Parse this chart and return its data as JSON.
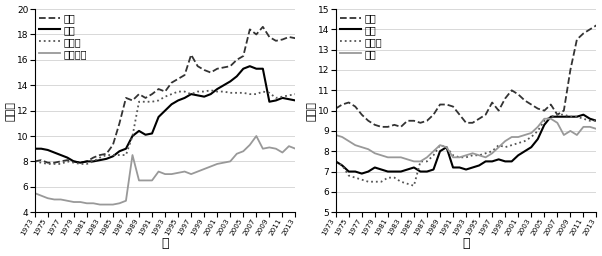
{
  "years": [
    1973,
    1974,
    1975,
    1976,
    1977,
    1978,
    1979,
    1980,
    1981,
    1982,
    1983,
    1984,
    1985,
    1986,
    1987,
    1988,
    1989,
    1990,
    1991,
    1992,
    1993,
    1994,
    1995,
    1996,
    1997,
    1998,
    1999,
    2000,
    2001,
    2002,
    2003,
    2004,
    2005,
    2006,
    2007,
    2008,
    2009,
    2010,
    2011,
    2012,
    2013
  ],
  "left": {
    "ylabel": "百分比",
    "xlabel": "年",
    "ylim": [
      4,
      20
    ],
    "yticks": [
      4,
      6,
      8,
      10,
      12,
      14,
      16,
      18,
      20
    ],
    "legend": [
      "美国",
      "英国",
      "加拿大",
      "澳大利亚"
    ],
    "line_styles": [
      "--",
      "-",
      ":",
      "-"
    ],
    "line_colors": [
      "#333333",
      "#000000",
      "#555555",
      "#999999"
    ],
    "linewidths": [
      1.3,
      1.5,
      1.3,
      1.3
    ],
    "USA": [
      8.0,
      8.1,
      7.9,
      7.9,
      8.0,
      8.1,
      8.0,
      7.9,
      8.0,
      8.3,
      8.5,
      8.6,
      9.3,
      11.0,
      13.0,
      12.8,
      13.3,
      13.0,
      13.3,
      13.7,
      13.5,
      14.2,
      14.5,
      14.8,
      16.4,
      15.5,
      15.2,
      15.0,
      15.3,
      15.4,
      15.5,
      16.0,
      16.3,
      18.4,
      18.0,
      18.6,
      17.8,
      17.5,
      17.6,
      17.8,
      17.7
    ],
    "UK": [
      9.0,
      9.0,
      8.9,
      8.7,
      8.5,
      8.3,
      8.0,
      7.9,
      8.0,
      8.0,
      8.1,
      8.2,
      8.4,
      8.8,
      9.0,
      10.0,
      10.4,
      10.1,
      10.2,
      11.5,
      12.0,
      12.5,
      12.8,
      13.0,
      13.3,
      13.2,
      13.1,
      13.3,
      13.7,
      14.0,
      14.3,
      14.7,
      15.3,
      15.5,
      15.3,
      15.3,
      12.7,
      12.8,
      13.0,
      12.9,
      12.8
    ],
    "Canada": [
      8.0,
      7.9,
      7.8,
      7.8,
      7.8,
      8.0,
      7.9,
      7.8,
      7.8,
      8.0,
      8.3,
      8.5,
      8.5,
      8.5,
      8.5,
      10.0,
      12.7,
      12.7,
      12.7,
      12.8,
      13.1,
      13.3,
      13.5,
      13.5,
      13.3,
      13.5,
      13.5,
      13.6,
      13.5,
      13.5,
      13.4,
      13.4,
      13.4,
      13.3,
      13.3,
      13.5,
      13.4,
      13.0,
      13.1,
      13.2,
      13.3
    ],
    "Australia": [
      5.5,
      5.3,
      5.1,
      5.0,
      5.0,
      4.9,
      4.8,
      4.8,
      4.7,
      4.7,
      4.6,
      4.6,
      4.6,
      4.7,
      4.9,
      8.5,
      6.5,
      6.5,
      6.5,
      7.2,
      7.0,
      7.0,
      7.1,
      7.2,
      7.0,
      7.2,
      7.4,
      7.6,
      7.8,
      7.9,
      8.0,
      8.6,
      8.8,
      9.3,
      10.0,
      9.0,
      9.1,
      9.0,
      8.7,
      9.2,
      9.0
    ]
  },
  "right": {
    "ylabel": "百分比",
    "xlabel": "年",
    "ylim": [
      5,
      15
    ],
    "yticks": [
      5,
      6,
      7,
      8,
      9,
      10,
      11,
      12,
      13,
      14,
      15
    ],
    "legend": [
      "德国",
      "日本",
      "意大利",
      "法国"
    ],
    "line_styles": [
      "--",
      "-",
      ":",
      "-"
    ],
    "line_colors": [
      "#333333",
      "#000000",
      "#555555",
      "#999999"
    ],
    "linewidths": [
      1.3,
      1.5,
      1.3,
      1.3
    ],
    "Germany": [
      10.1,
      10.3,
      10.4,
      10.2,
      9.8,
      9.5,
      9.3,
      9.2,
      9.2,
      9.3,
      9.2,
      9.5,
      9.5,
      9.4,
      9.5,
      9.8,
      10.3,
      10.3,
      10.2,
      9.8,
      9.4,
      9.4,
      9.6,
      9.8,
      10.4,
      10.0,
      10.6,
      11.0,
      10.8,
      10.5,
      10.3,
      10.1,
      10.0,
      10.3,
      9.8,
      10.0,
      12.0,
      13.5,
      13.8,
      14.0,
      14.2
    ],
    "Japan": [
      7.5,
      7.3,
      7.0,
      7.0,
      6.9,
      7.0,
      7.2,
      7.1,
      7.0,
      7.0,
      7.0,
      7.1,
      7.2,
      7.0,
      7.0,
      7.1,
      8.0,
      8.2,
      7.2,
      7.2,
      7.1,
      7.2,
      7.3,
      7.5,
      7.5,
      7.6,
      7.5,
      7.5,
      7.8,
      8.0,
      8.2,
      8.6,
      9.3,
      9.7,
      9.7,
      9.7,
      9.7,
      9.7,
      9.8,
      9.6,
      9.5
    ],
    "Italy": [
      7.5,
      7.3,
      6.8,
      6.7,
      6.6,
      6.5,
      6.5,
      6.5,
      6.7,
      6.7,
      6.5,
      6.4,
      6.3,
      7.5,
      7.5,
      7.8,
      8.3,
      8.2,
      7.8,
      7.7,
      7.7,
      7.8,
      7.8,
      7.9,
      8.0,
      8.3,
      8.2,
      8.3,
      8.4,
      8.5,
      8.7,
      9.0,
      9.5,
      9.7,
      9.8,
      9.8,
      9.7,
      9.7,
      9.6,
      9.5,
      9.5
    ],
    "France": [
      8.8,
      8.7,
      8.5,
      8.3,
      8.2,
      8.1,
      7.9,
      7.8,
      7.7,
      7.7,
      7.7,
      7.6,
      7.5,
      7.5,
      7.7,
      8.0,
      8.3,
      8.2,
      7.7,
      7.7,
      7.8,
      7.9,
      7.8,
      7.7,
      7.9,
      8.2,
      8.5,
      8.7,
      8.7,
      8.8,
      8.9,
      9.2,
      9.6,
      9.6,
      9.4,
      8.8,
      9.0,
      8.8,
      9.2,
      9.2,
      9.1
    ]
  },
  "xtick_years": [
    1973,
    1975,
    1977,
    1979,
    1981,
    1983,
    1985,
    1987,
    1989,
    1991,
    1993,
    1995,
    1997,
    1999,
    2001,
    2003,
    2005,
    2007,
    2009,
    2011,
    2013
  ]
}
